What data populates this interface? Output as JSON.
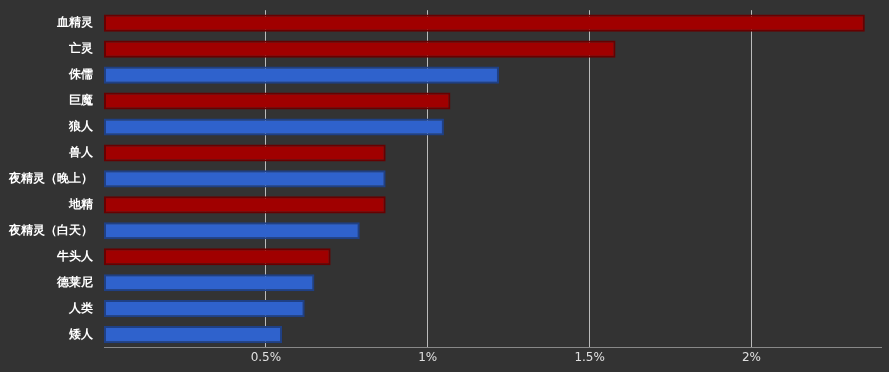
{
  "chart_data": {
    "type": "bar",
    "orientation": "horizontal",
    "categories": [
      "血精灵",
      "亡灵",
      "侏儒",
      "巨魔",
      "狼人",
      "兽人",
      "夜精灵（晚上）",
      "地精",
      "夜精灵（白天）",
      "牛头人",
      "德莱尼",
      "人类",
      "矮人"
    ],
    "values": [
      2.35,
      1.58,
      1.22,
      1.07,
      1.05,
      0.87,
      0.87,
      0.87,
      0.79,
      0.7,
      0.65,
      0.62,
      0.55
    ],
    "colors": [
      "#a00000",
      "#a00000",
      "#2f62cc",
      "#a00000",
      "#2f62cc",
      "#a00000",
      "#2f62cc",
      "#a00000",
      "#2f62cc",
      "#a00000",
      "#2f62cc",
      "#2f62cc",
      "#2f62cc"
    ],
    "xlim": [
      0,
      2.4
    ],
    "xticks": [
      {
        "value": 0.5,
        "label": "0.5%"
      },
      {
        "value": 1,
        "label": "1%"
      },
      {
        "value": 1.5,
        "label": "1.5%"
      },
      {
        "value": 2,
        "label": "2%"
      }
    ],
    "grid": true
  }
}
